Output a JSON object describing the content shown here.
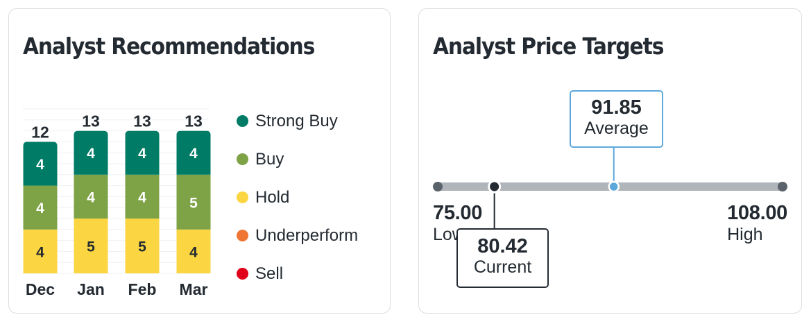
{
  "recommendations": {
    "title": "Analyst Recommendations",
    "legend": [
      {
        "label": "Strong Buy",
        "color": "#007c66"
      },
      {
        "label": "Buy",
        "color": "#7ea346"
      },
      {
        "label": "Hold",
        "color": "#fcd642"
      },
      {
        "label": "Underperform",
        "color": "#ef7533"
      },
      {
        "label": "Sell",
        "color": "#e0001a"
      }
    ]
  },
  "price_targets": {
    "title": "Analyst Price Targets",
    "low": {
      "value": "75.00",
      "label": "Low"
    },
    "high": {
      "value": "108.00",
      "label": "High"
    },
    "average": {
      "value": "91.85",
      "label": "Average"
    },
    "current": {
      "value": "80.42",
      "label": "Current"
    },
    "colors": {
      "track": "#b0b5ba",
      "endpoint": "#5b636a",
      "average": "#5ca8db",
      "current": "#232a31"
    }
  },
  "chart_data": [
    {
      "type": "bar",
      "stacked": true,
      "categories": [
        "Dec",
        "Jan",
        "Feb",
        "Mar"
      ],
      "totals": [
        12,
        13,
        13,
        13
      ],
      "series": [
        {
          "name": "Strong Buy",
          "values": [
            4,
            4,
            4,
            4
          ],
          "color": "#007c66"
        },
        {
          "name": "Buy",
          "values": [
            4,
            4,
            4,
            5
          ],
          "color": "#7ea346"
        },
        {
          "name": "Hold",
          "values": [
            4,
            5,
            5,
            4
          ],
          "color": "#fcd642"
        },
        {
          "name": "Underperform",
          "values": [
            0,
            0,
            0,
            0
          ],
          "color": "#ef7533"
        },
        {
          "name": "Sell",
          "values": [
            0,
            0,
            0,
            0
          ],
          "color": "#e0001a"
        }
      ]
    },
    {
      "type": "range",
      "low": 75.0,
      "high": 108.0,
      "average": 91.85,
      "current": 80.42
    }
  ]
}
